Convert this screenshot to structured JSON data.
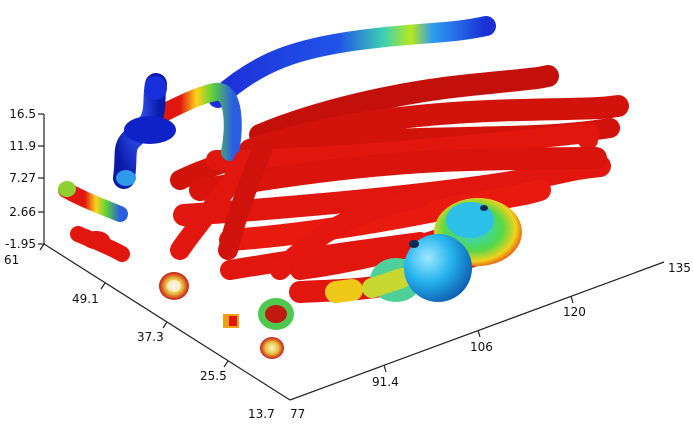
{
  "axes": {
    "z_ticks": [
      "16.5",
      "11.9",
      "7.27",
      "2.66",
      "-1.95"
    ],
    "y_ticks": [
      "61",
      "49.1",
      "37.3",
      "25.5",
      "13.7"
    ],
    "x_ticks": [
      "77",
      "91.4",
      "106",
      "120",
      "135"
    ]
  },
  "colors": {
    "background": "#ffffff",
    "tube_red": "#e0160f",
    "tube_blue": "#1a2fd6",
    "tube_green": "#3fd34a",
    "tube_yellow": "#f2e21a",
    "bulb_cyan": "#20c6f0"
  }
}
